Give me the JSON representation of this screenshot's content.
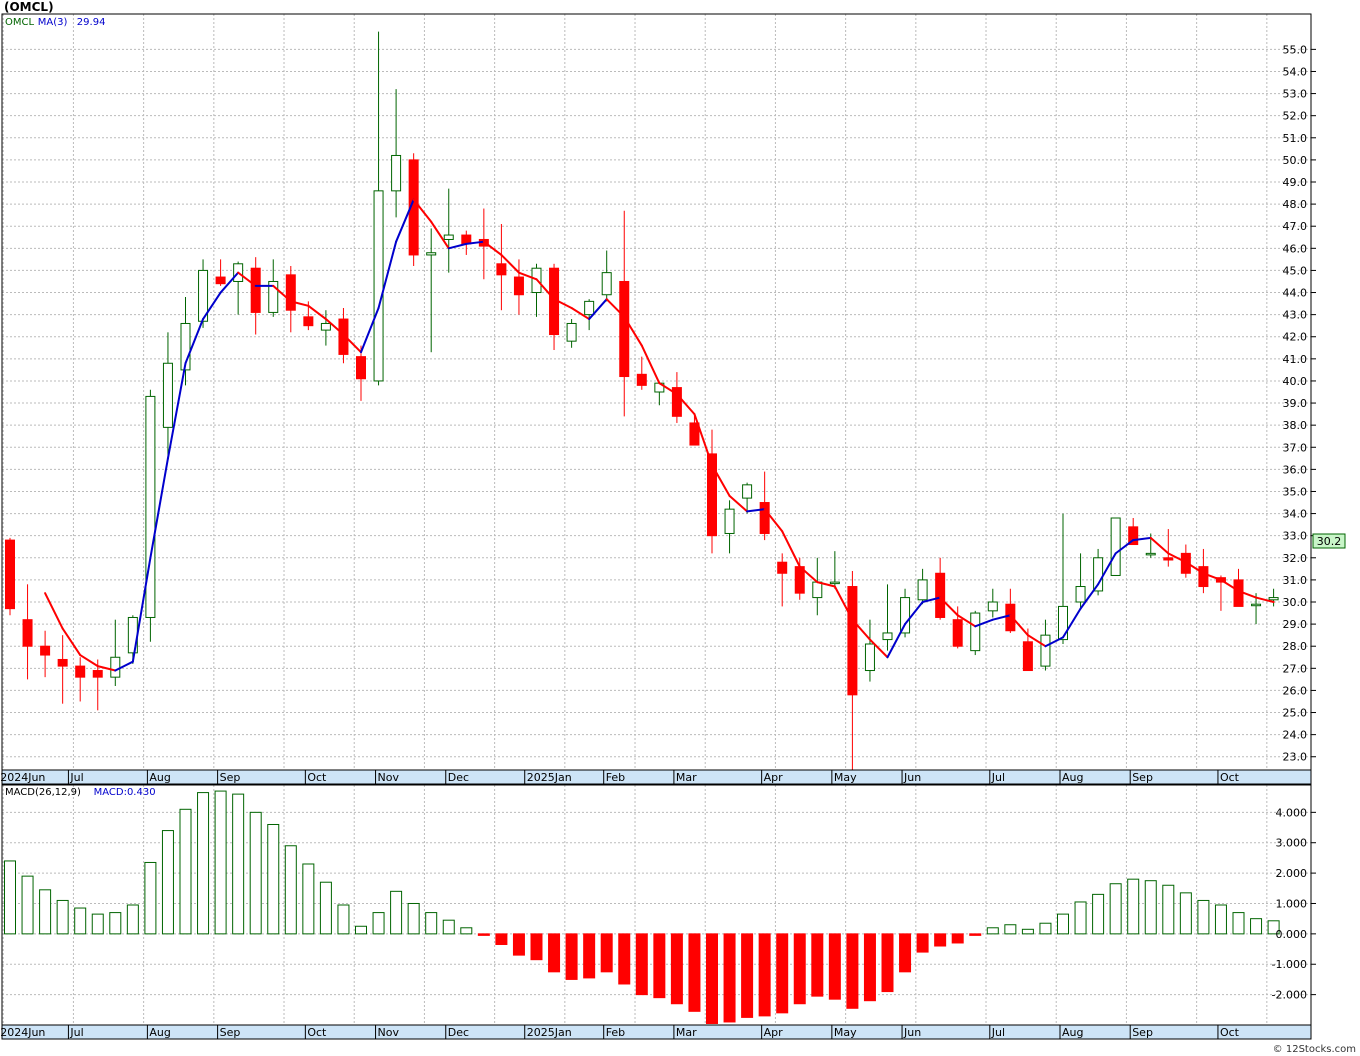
{
  "title": "(OMCL)",
  "credit": "© 12Stocks.com",
  "last_price_label": "30.2",
  "colors": {
    "up": "#006400",
    "down": "#ff0000",
    "ma_up": "#0000cc",
    "ma_down": "#ff0000",
    "axis": "#000000",
    "grid": "#bbbbbb",
    "xband": "#cde4f7",
    "last_box": "#c8f5c8"
  },
  "chart_data": [
    {
      "type": "candlestick",
      "legend": [
        {
          "text": "OMCL",
          "color": "#006400"
        },
        {
          "text": "MA(3)",
          "color": "#0000cc"
        },
        {
          "text": "29.94",
          "color": "#0000cc"
        }
      ],
      "ylim": [
        22.4,
        56.6
      ],
      "yticks": [
        23,
        24,
        25,
        26,
        27,
        28,
        29,
        30,
        31,
        32,
        33,
        34,
        35,
        36,
        37,
        38,
        39,
        40,
        41,
        42,
        43,
        44,
        45,
        46,
        47,
        48,
        49,
        50,
        51,
        52,
        53,
        54,
        55
      ],
      "xlabels": [
        "2024Jun",
        "Jul",
        "Aug",
        "Sep",
        "Oct",
        "Nov",
        "Dec",
        "2025Jan",
        "Feb",
        "Mar",
        "Apr",
        "May",
        "Jun",
        "Jul",
        "Aug",
        "Sep",
        "Oct"
      ],
      "xlabel_index": [
        0,
        4,
        8.5,
        12.5,
        17.5,
        21.5,
        25.5,
        30,
        34.5,
        38.5,
        43.5,
        47.5,
        51.5,
        56.5,
        60.5,
        64.5,
        69.5
      ],
      "candles": [
        [
          32.8,
          32.9,
          29.4,
          29.7
        ],
        [
          29.2,
          30.8,
          26.5,
          28.0
        ],
        [
          28.0,
          28.7,
          26.6,
          27.6
        ],
        [
          27.4,
          28.5,
          25.4,
          27.1
        ],
        [
          27.1,
          27.5,
          25.5,
          26.6
        ],
        [
          26.9,
          27.4,
          25.1,
          26.6
        ],
        [
          26.6,
          29.2,
          26.2,
          27.5
        ],
        [
          27.7,
          29.4,
          27.2,
          29.3
        ],
        [
          29.3,
          39.6,
          28.2,
          39.3
        ],
        [
          37.9,
          42.2,
          36.5,
          40.8
        ],
        [
          40.5,
          43.8,
          39.8,
          42.6
        ],
        [
          42.7,
          45.5,
          42.4,
          45.0
        ],
        [
          44.7,
          45.5,
          44.3,
          44.4
        ],
        [
          44.5,
          45.4,
          43.0,
          45.3
        ],
        [
          45.1,
          45.6,
          42.1,
          43.1
        ],
        [
          43.1,
          45.5,
          42.9,
          44.5
        ],
        [
          44.8,
          45.2,
          42.2,
          43.2
        ],
        [
          42.9,
          43.6,
          42.3,
          42.5
        ],
        [
          42.3,
          43.2,
          41.6,
          42.6
        ],
        [
          42.8,
          43.3,
          40.8,
          41.2
        ],
        [
          41.1,
          41.6,
          39.1,
          40.1
        ],
        [
          40.0,
          55.8,
          39.8,
          48.6
        ],
        [
          48.6,
          53.2,
          47.4,
          50.2
        ],
        [
          50.0,
          50.3,
          45.2,
          45.7
        ],
        [
          45.7,
          46.9,
          41.3,
          45.8
        ],
        [
          46.4,
          48.7,
          44.9,
          46.6
        ],
        [
          46.6,
          46.8,
          45.7,
          46.2
        ],
        [
          46.4,
          47.8,
          44.6,
          46.1
        ],
        [
          45.3,
          47.1,
          43.2,
          44.8
        ],
        [
          44.7,
          45.5,
          43.0,
          43.9
        ],
        [
          44.0,
          45.3,
          42.9,
          45.1
        ],
        [
          45.1,
          45.3,
          41.4,
          42.1
        ],
        [
          41.8,
          42.8,
          41.5,
          42.6
        ],
        [
          43.0,
          43.7,
          42.3,
          43.6
        ],
        [
          43.9,
          45.9,
          43.6,
          44.9
        ],
        [
          44.5,
          47.7,
          38.4,
          40.2
        ],
        [
          40.3,
          41.1,
          39.6,
          39.8
        ],
        [
          39.5,
          39.9,
          38.9,
          39.9
        ],
        [
          39.7,
          40.4,
          38.1,
          38.4
        ],
        [
          38.1,
          38.5,
          37.1,
          37.1
        ],
        [
          36.7,
          37.8,
          32.2,
          33.0
        ],
        [
          33.1,
          34.6,
          32.2,
          34.2
        ],
        [
          34.7,
          35.4,
          34.0,
          35.3
        ],
        [
          34.5,
          35.9,
          32.8,
          33.1
        ],
        [
          31.8,
          32.2,
          29.8,
          31.3
        ],
        [
          31.6,
          32.0,
          30.1,
          30.4
        ],
        [
          30.2,
          32.0,
          29.4,
          30.9
        ],
        [
          30.9,
          32.3,
          30.6,
          30.9
        ],
        [
          30.7,
          31.4,
          22.4,
          25.8
        ],
        [
          26.9,
          29.2,
          26.4,
          28.1
        ],
        [
          28.3,
          30.8,
          27.8,
          28.6
        ],
        [
          28.6,
          30.6,
          28.4,
          30.2
        ],
        [
          30.1,
          31.5,
          29.9,
          31.0
        ],
        [
          31.3,
          32.0,
          29.2,
          29.3
        ],
        [
          29.2,
          29.8,
          27.9,
          28.0
        ],
        [
          27.8,
          29.6,
          27.6,
          29.5
        ],
        [
          29.6,
          30.6,
          29.3,
          30.0
        ],
        [
          29.9,
          30.6,
          28.6,
          28.7
        ],
        [
          28.2,
          28.8,
          26.9,
          26.9
        ],
        [
          27.1,
          29.2,
          26.9,
          28.5
        ],
        [
          28.3,
          34.0,
          28.1,
          29.8
        ],
        [
          30.0,
          32.2,
          29.7,
          30.7
        ],
        [
          30.5,
          32.4,
          30.3,
          32.0
        ],
        [
          31.2,
          33.8,
          31.4,
          33.8
        ],
        [
          33.4,
          33.8,
          32.7,
          32.6
        ],
        [
          32.2,
          33.1,
          32.0,
          32.2
        ],
        [
          32.0,
          33.3,
          31.6,
          31.9
        ],
        [
          32.2,
          32.6,
          31.1,
          31.3
        ],
        [
          31.6,
          32.4,
          30.4,
          30.7
        ],
        [
          31.1,
          31.2,
          29.6,
          30.9
        ],
        [
          31.0,
          31.5,
          29.9,
          29.8
        ],
        [
          29.9,
          30.4,
          29.0,
          29.9
        ],
        [
          30.1,
          30.6,
          29.8,
          30.2
        ]
      ],
      "ma": [
        null,
        null,
        30.4,
        28.8,
        27.6,
        27.1,
        26.9,
        27.3,
        32.0,
        36.5,
        40.8,
        42.8,
        44.0,
        44.9,
        44.3,
        44.3,
        43.6,
        43.4,
        42.8,
        42.1,
        41.3,
        43.3,
        46.3,
        48.2,
        47.2,
        46.0,
        46.2,
        46.3,
        45.7,
        44.9,
        44.6,
        43.7,
        43.3,
        42.8,
        43.7,
        42.9,
        41.6,
        39.9,
        39.4,
        38.5,
        36.2,
        34.8,
        34.1,
        34.2,
        33.2,
        31.6,
        30.9,
        30.7,
        29.2,
        28.3,
        27.5,
        29.0,
        30.0,
        30.2,
        29.4,
        28.9,
        29.2,
        29.4,
        28.5,
        28.0,
        28.4,
        29.7,
        30.8,
        32.2,
        32.8,
        32.9,
        32.2,
        31.8,
        31.3,
        31.0,
        30.5,
        30.2,
        30.0
      ]
    },
    {
      "type": "bar",
      "legend": [
        {
          "text": "MACD(26,12,9)",
          "color": "#000000"
        },
        {
          "text": "MACD:0.430",
          "color": "#0000cc"
        }
      ],
      "ylim": [
        -3.0,
        4.9
      ],
      "yticks": [
        -2.0,
        -1.0,
        0.0,
        1.0,
        2.0,
        3.0,
        4.0
      ],
      "ytick_labels": [
        "-2.000",
        "-1.000",
        "0.000",
        "1.000",
        "2.000",
        "3.000",
        "4.000"
      ],
      "xlabels": [
        "2024Jun",
        "Jul",
        "Aug",
        "Sep",
        "Oct",
        "Nov",
        "Dec",
        "2025Jan",
        "Feb",
        "Mar",
        "Apr",
        "May",
        "Jun",
        "Jul",
        "Aug",
        "Sep",
        "Oct"
      ],
      "values": [
        2.4,
        1.9,
        1.45,
        1.1,
        0.85,
        0.65,
        0.7,
        0.95,
        2.35,
        3.4,
        4.1,
        4.65,
        4.7,
        4.6,
        4.0,
        3.6,
        2.9,
        2.3,
        1.7,
        0.95,
        0.25,
        0.7,
        1.4,
        1.0,
        0.7,
        0.45,
        0.2,
        -0.05,
        -0.35,
        -0.7,
        -0.85,
        -1.25,
        -1.5,
        -1.45,
        -1.25,
        -1.65,
        -2.0,
        -2.1,
        -2.3,
        -2.55,
        -2.95,
        -2.9,
        -2.75,
        -2.7,
        -2.6,
        -2.3,
        -2.05,
        -2.15,
        -2.45,
        -2.2,
        -1.9,
        -1.25,
        -0.6,
        -0.4,
        -0.3,
        -0.05,
        0.2,
        0.3,
        0.15,
        0.35,
        0.65,
        1.05,
        1.3,
        1.65,
        1.8,
        1.75,
        1.6,
        1.35,
        1.1,
        0.95,
        0.7,
        0.5,
        0.43
      ]
    }
  ]
}
